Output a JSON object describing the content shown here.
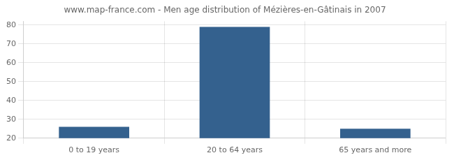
{
  "chart_data": {
    "type": "bar",
    "title": "www.map-france.com - Men age distribution of Mézières-en-Gâtinais in 2007",
    "categories": [
      "0 to 19 years",
      "20 to 64 years",
      "65 years and more"
    ],
    "values": [
      26,
      79,
      25
    ],
    "color": "#34618e",
    "ylim": [
      20,
      82
    ],
    "yticks": [
      20,
      30,
      40,
      50,
      60,
      70,
      80
    ],
    "grid": true
  }
}
